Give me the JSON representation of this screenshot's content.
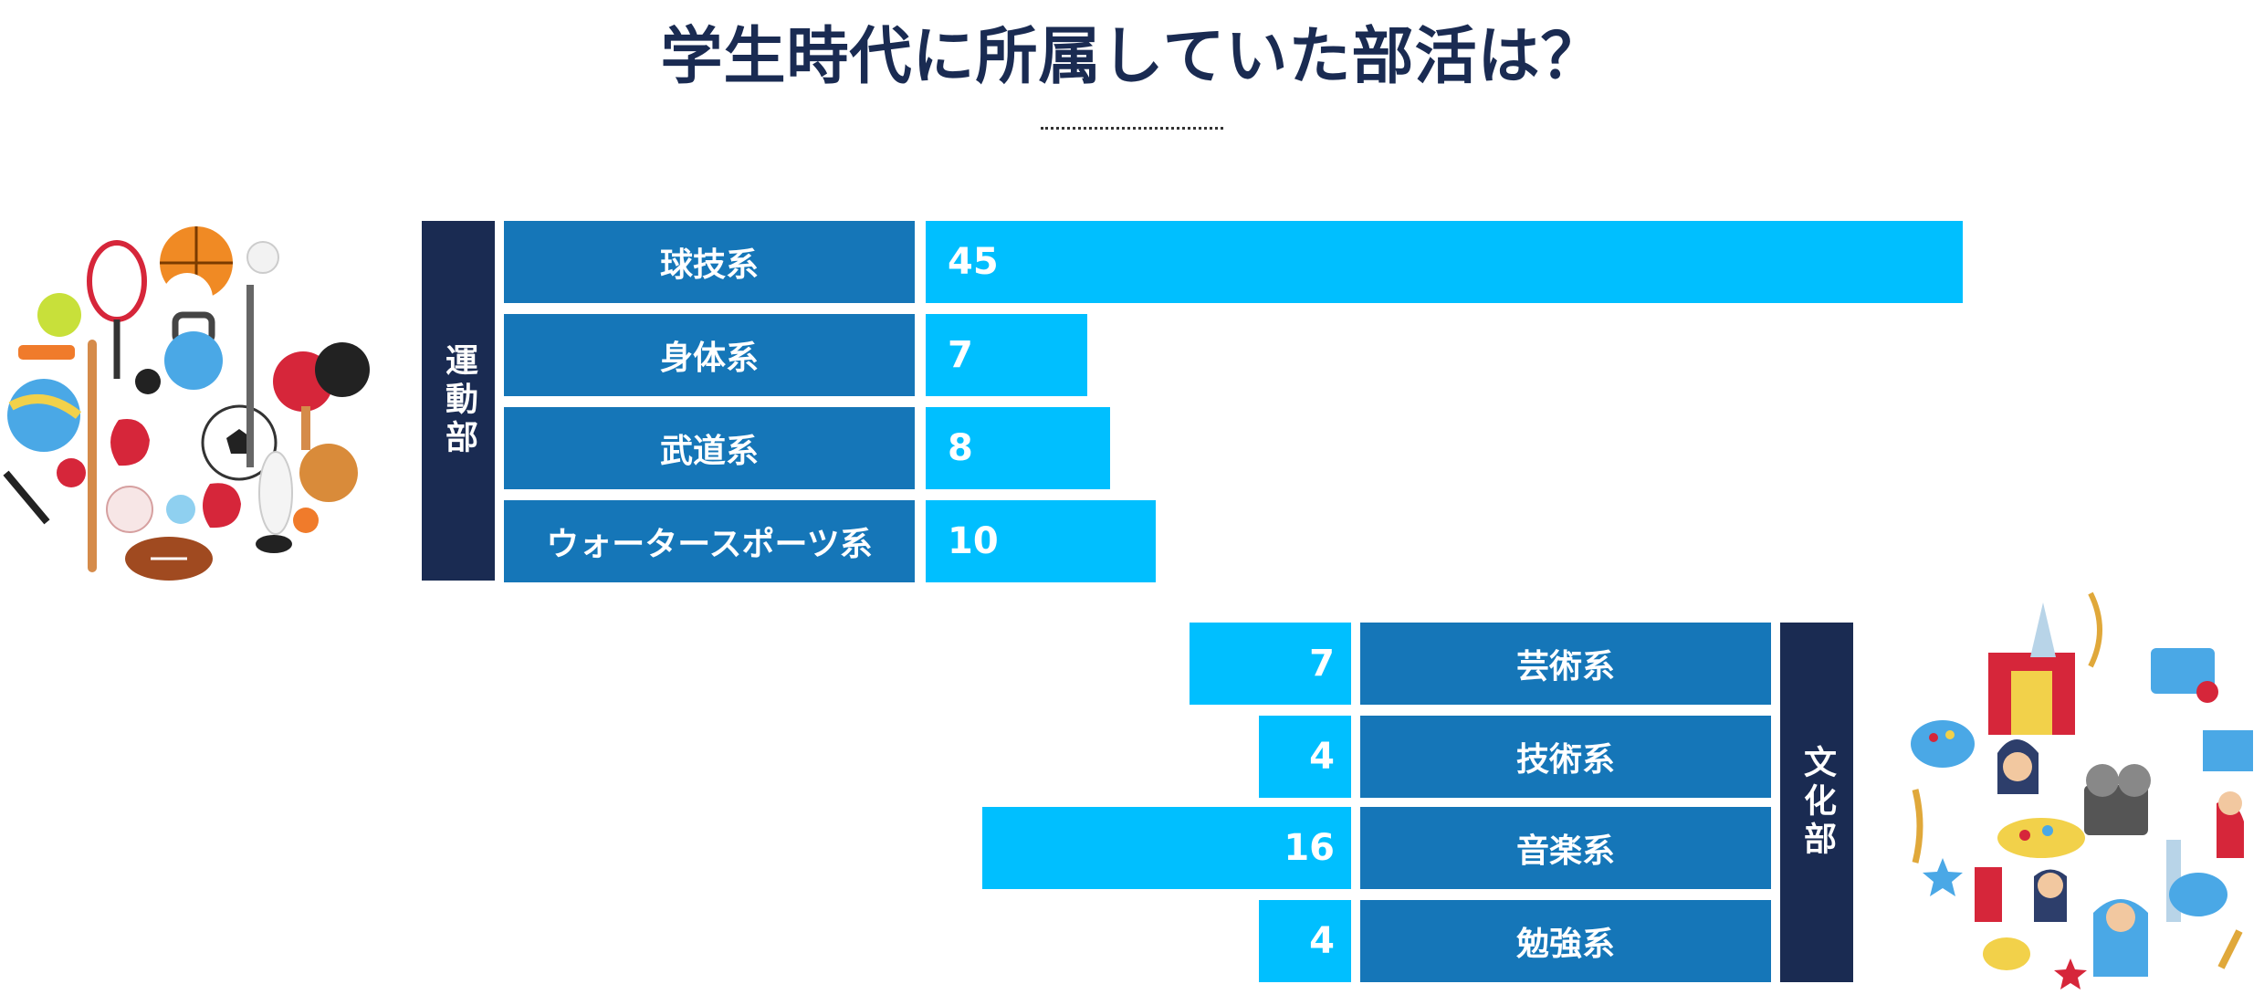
{
  "title": "学生時代に所属していた部活は？",
  "colors": {
    "title": "#1a2b52",
    "group": "#1a2b52",
    "category": "#1576b8",
    "bar": "#00bfff"
  },
  "icons": {
    "sports": "sports-equipment-illustration",
    "culture": "arts-culture-illustration"
  },
  "chart_data": [
    {
      "type": "bar",
      "orientation": "horizontal",
      "group": "運動部",
      "categories": [
        "球技系",
        "身体系",
        "武道系",
        "ウォータースポーツ系"
      ],
      "values": [
        45,
        7,
        8,
        10
      ],
      "value_labels": [
        "45",
        "7",
        "8",
        "10"
      ]
    },
    {
      "type": "bar",
      "orientation": "horizontal",
      "group": "文化部",
      "categories": [
        "芸術系",
        "技術系",
        "音楽系",
        "勉強系"
      ],
      "values": [
        7,
        4,
        16,
        4
      ],
      "value_labels": [
        "7",
        "4",
        "16",
        "4"
      ]
    }
  ]
}
